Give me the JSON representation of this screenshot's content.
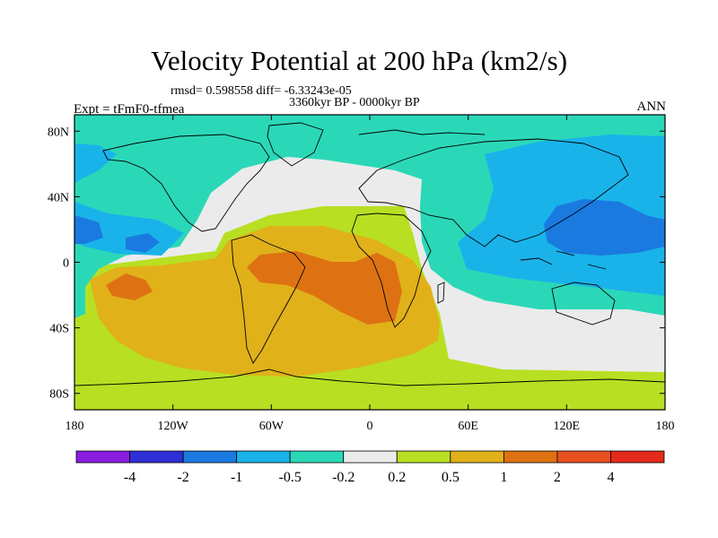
{
  "chart_data": {
    "type": "heatmap",
    "title": "Velocity Potential at 200 hPa (km2/s)",
    "stats_line": "rmsd= 0.598558 diff= -6.33243e-05",
    "period": "3360kyr BP - 0000kyr BP",
    "experiment": "Expt = tFmF0-tfmea",
    "season": "ANN",
    "x_ticks": [
      "180",
      "120W",
      "60W",
      "0",
      "60E",
      "120E",
      "180"
    ],
    "y_ticks": [
      "80N",
      "40N",
      "0",
      "40S",
      "80S"
    ],
    "lon_range": [
      -180,
      180
    ],
    "lat_range": [
      -90,
      90
    ],
    "colorbar": {
      "labels": [
        "-4",
        "-2",
        "-1",
        "-0.5",
        "-0.2",
        "0.2",
        "0.5",
        "1",
        "2",
        "4"
      ],
      "colors": [
        "#8a1de0",
        "#2f2fd6",
        "#1a7ae0",
        "#19b3ea",
        "#2ad8b8",
        "#ebebeb",
        "#b8df22",
        "#e1b11a",
        "#de7212",
        "#e85020",
        "#e42a1a"
      ]
    }
  }
}
